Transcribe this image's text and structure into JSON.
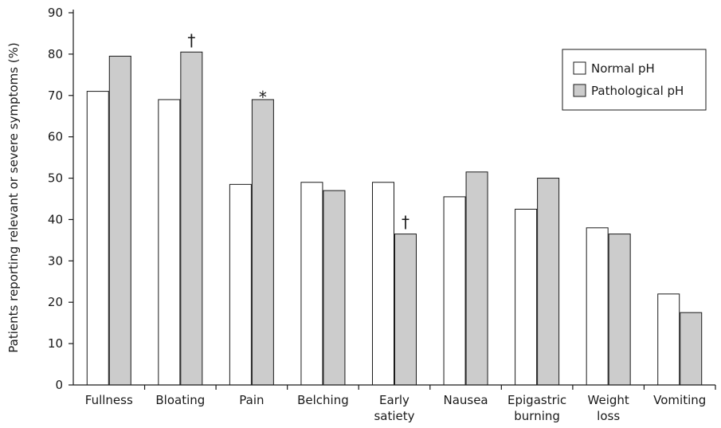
{
  "chart_data": {
    "type": "bar",
    "ylabel": "Patients reporting relevant or severe symptoms (%)",
    "ylim": [
      0,
      90
    ],
    "yticks": [
      0,
      10,
      20,
      30,
      40,
      50,
      60,
      70,
      80,
      90
    ],
    "grid": false,
    "legend_position": "top-right",
    "categories": [
      [
        "Fullness"
      ],
      [
        "Bloating"
      ],
      [
        "Pain"
      ],
      [
        "Belching"
      ],
      [
        "Early",
        "satiety"
      ],
      [
        "Nausea"
      ],
      [
        "Epigastric",
        "burning"
      ],
      [
        "Weight",
        "loss"
      ],
      [
        "Vomiting"
      ]
    ],
    "series": [
      {
        "name": "Normal pH",
        "color": "#ffffff",
        "values": [
          71,
          69,
          48.5,
          49,
          49,
          45.5,
          42.5,
          38,
          22
        ]
      },
      {
        "name": "Pathological pH",
        "color": "#cccccc",
        "values": [
          79.5,
          80.5,
          69,
          47,
          36.5,
          51.5,
          50,
          36.5,
          17.5
        ]
      }
    ],
    "annotations": [
      {
        "category_index": 1,
        "series_index": 1,
        "text": "†"
      },
      {
        "category_index": 2,
        "series_index": 1,
        "text": "*"
      },
      {
        "category_index": 4,
        "series_index": 1,
        "text": "†"
      }
    ]
  }
}
